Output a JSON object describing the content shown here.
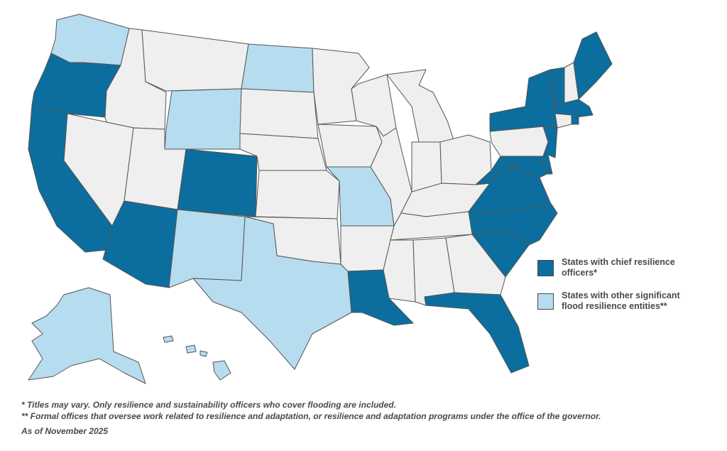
{
  "colors": {
    "chief": "#0b6e9e",
    "other": "#b6dcef",
    "none": "#efefef",
    "stroke": "#555555"
  },
  "legend": {
    "chief_label_line1": "States with chief resilience",
    "chief_label_line2": "officers*",
    "other_label_line1": "States with other significant",
    "other_label_line2": "flood resilience entities**"
  },
  "notes": {
    "note1": "* Titles may vary. Only resilience and sustainability officers who cover flooding are included.",
    "note2": "** Formal offices that oversee work related to resilience and adaptation, or resilience and adaptation programs under the office of the governor.",
    "as_of": "As of November 2025"
  },
  "states": {
    "chief": [
      "OR",
      "CA",
      "AZ",
      "CO",
      "LA",
      "FL",
      "SC",
      "NC",
      "VA",
      "WV",
      "MD",
      "DE",
      "NJ",
      "NY",
      "VT",
      "ME",
      "MA",
      "RI"
    ],
    "other": [
      "WA",
      "ND",
      "WY",
      "NM",
      "TX",
      "MO",
      "AK",
      "HI"
    ],
    "none": [
      "ID",
      "MT",
      "NV",
      "UT",
      "SD",
      "NE",
      "KS",
      "OK",
      "MN",
      "IA",
      "AR",
      "MS",
      "AL",
      "GA",
      "TN",
      "KY",
      "IL",
      "IN",
      "OH",
      "WI",
      "MI",
      "PA",
      "CT",
      "NH"
    ]
  }
}
